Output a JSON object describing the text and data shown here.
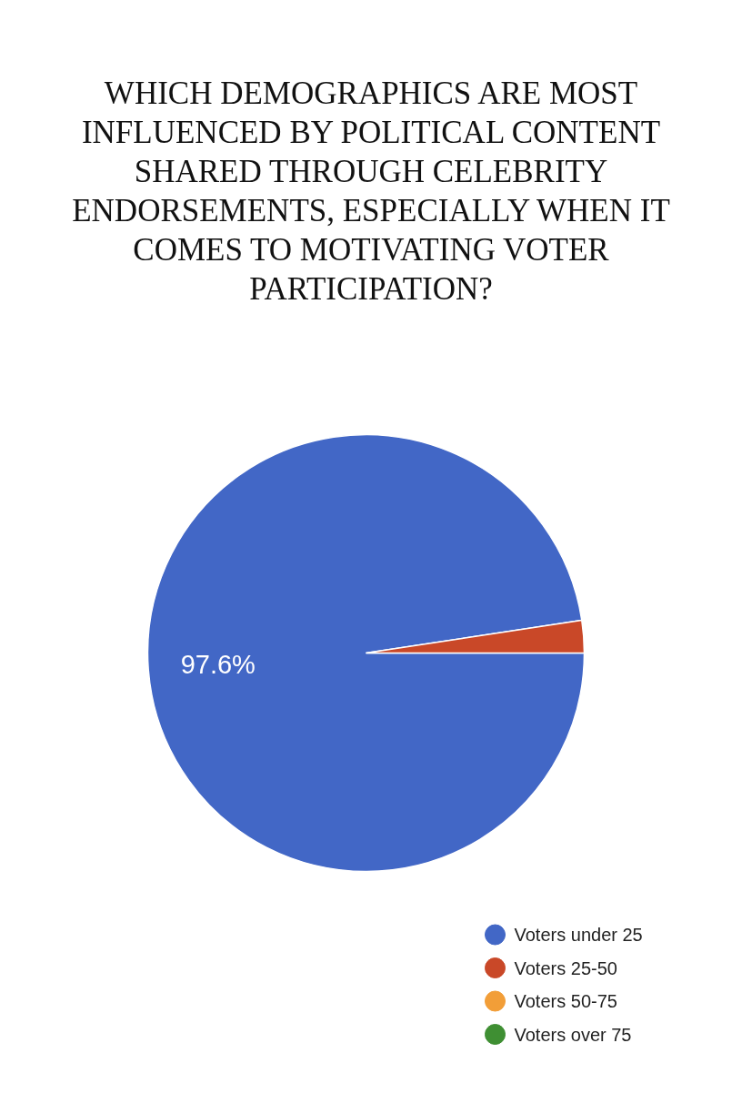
{
  "chart_data": {
    "type": "pie",
    "title": "WHICH DEMOGRAPHICS ARE MOST INFLUENCED BY POLITICAL CONTENT SHARED THROUGH CELEBRITY ENDORSEMENTS, ESPECIALLY WHEN IT COMES TO MOTIVATING VOTER PARTICIPATION?",
    "categories": [
      "Voters under 25",
      "Voters 25-50",
      "Voters 50-75",
      "Voters over 75"
    ],
    "values": [
      97.6,
      2.4,
      0,
      0
    ],
    "colors": [
      "#4267c6",
      "#c94828",
      "#f29e38",
      "#3f8f33"
    ],
    "value_labels": [
      "97.6%",
      null,
      null,
      null
    ],
    "legend": "bottom right"
  }
}
